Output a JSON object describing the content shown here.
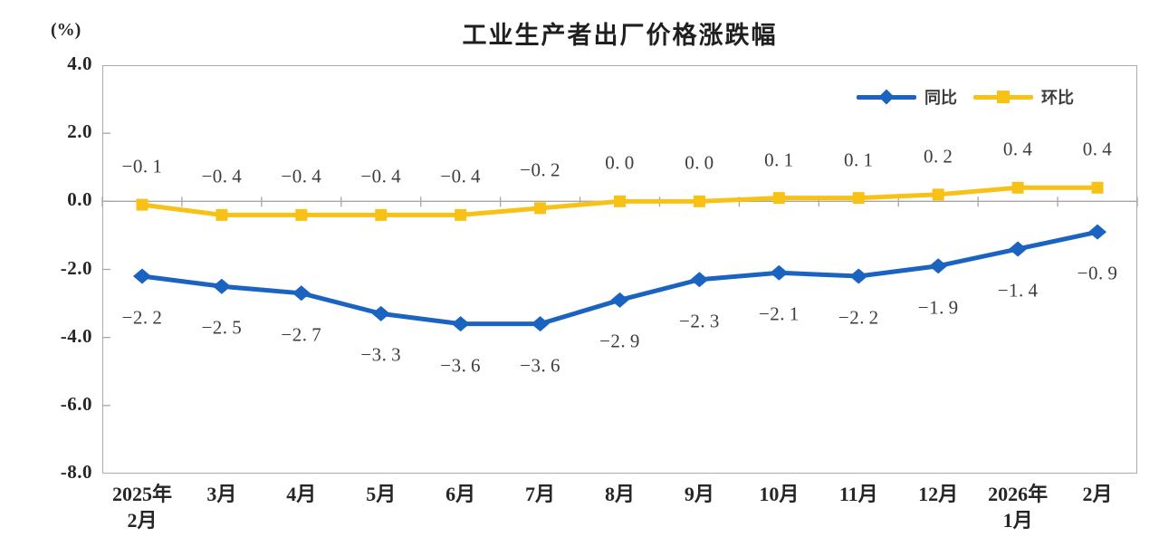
{
  "chart_data": {
    "type": "line",
    "title": "工业生产者出厂价格涨跌幅",
    "unit_label": "(%)",
    "categories": [
      "2025年\n2月",
      "3月",
      "4月",
      "5月",
      "6月",
      "7月",
      "8月",
      "9月",
      "10月",
      "11月",
      "12月",
      "2026年\n1月",
      "2月"
    ],
    "series": [
      {
        "name": "同比",
        "marker": "diamond",
        "color": "#1a63c0",
        "label_position": "below",
        "values": [
          -2.2,
          -2.5,
          -2.7,
          -3.3,
          -3.6,
          -3.6,
          -2.9,
          -2.3,
          -2.1,
          -2.2,
          -1.9,
          -1.4,
          -0.9
        ]
      },
      {
        "name": "环比",
        "marker": "square",
        "color": "#f8c116",
        "label_position": "above",
        "values": [
          -0.1,
          -0.4,
          -0.4,
          -0.4,
          -0.4,
          -0.2,
          0.0,
          0.0,
          0.1,
          0.1,
          0.2,
          0.4,
          0.4
        ]
      }
    ],
    "ylim": [
      -8,
      4
    ],
    "ytick_step": 2,
    "ytick_labels": [
      "4.0",
      "2.0",
      "0.0",
      "-2.0",
      "-4.0",
      "-6.0",
      "-8.0"
    ],
    "xlabel": "",
    "ylabel": "(%)",
    "grid": "zero-line-only",
    "legend_position": "top-right",
    "axis_color": "#a6a6a6",
    "label_color": "#3d3d3d"
  }
}
